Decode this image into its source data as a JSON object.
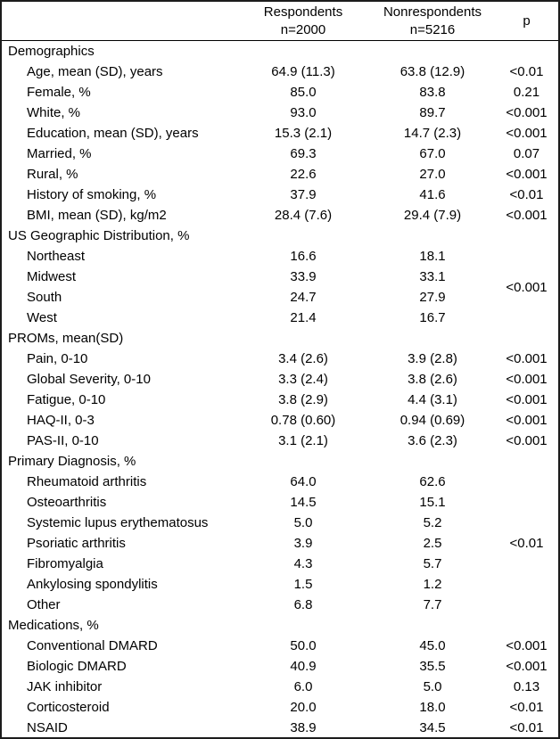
{
  "table": {
    "columns": {
      "respondents": {
        "line1": "Respondents",
        "line2": "n=2000"
      },
      "nonrespondents": {
        "line1": "Nonrespondents",
        "line2": "n=5216"
      },
      "p_label": "p"
    },
    "sections": [
      {
        "header": "Demographics",
        "rows": [
          {
            "label": "Age, mean (SD), years",
            "respondents": "64.9 (11.3)",
            "nonrespondents": "63.8 (12.9)",
            "p": "<0.01"
          },
          {
            "label": "Female, %",
            "respondents": "85.0",
            "nonrespondents": "83.8",
            "p": "0.21"
          },
          {
            "label": "White, %",
            "respondents": "93.0",
            "nonrespondents": "89.7",
            "p": "<0.001"
          },
          {
            "label": "Education, mean (SD), years",
            "respondents": "15.3 (2.1)",
            "nonrespondents": "14.7 (2.3)",
            "p": "<0.001"
          },
          {
            "label": "Married, %",
            "respondents": "69.3",
            "nonrespondents": "67.0",
            "p": "0.07"
          },
          {
            "label": "Rural, %",
            "respondents": "22.6",
            "nonrespondents": "27.0",
            "p": "<0.001"
          },
          {
            "label": "History of smoking, %",
            "respondents": "37.9",
            "nonrespondents": "41.6",
            "p": "<0.01"
          },
          {
            "label": "BMI, mean (SD), kg/m2",
            "respondents": "28.4 (7.6)",
            "nonrespondents": "29.4 (7.9)",
            "p": "<0.001"
          }
        ]
      },
      {
        "header": "US Geographic Distribution, %",
        "merged_p": "<0.001",
        "rows": [
          {
            "label": "Northeast",
            "respondents": "16.6",
            "nonrespondents": "18.1"
          },
          {
            "label": "Midwest",
            "respondents": "33.9",
            "nonrespondents": "33.1"
          },
          {
            "label": "South",
            "respondents": "24.7",
            "nonrespondents": "27.9"
          },
          {
            "label": "West",
            "respondents": "21.4",
            "nonrespondents": "16.7"
          }
        ]
      },
      {
        "header": "PROMs, mean(SD)",
        "rows": [
          {
            "label": "Pain, 0-10",
            "respondents": "3.4 (2.6)",
            "nonrespondents": "3.9 (2.8)",
            "p": "<0.001"
          },
          {
            "label": "Global Severity, 0-10",
            "respondents": "3.3 (2.4)",
            "nonrespondents": "3.8 (2.6)",
            "p": "<0.001"
          },
          {
            "label": "Fatigue, 0-10",
            "respondents": "3.8 (2.9)",
            "nonrespondents": "4.4 (3.1)",
            "p": "<0.001"
          },
          {
            "label": "HAQ-II, 0-3",
            "respondents": "0.78 (0.60)",
            "nonrespondents": "0.94 (0.69)",
            "p": "<0.001"
          },
          {
            "label": "PAS-II, 0-10",
            "respondents": "3.1 (2.1)",
            "nonrespondents": "3.6 (2.3)",
            "p": "<0.001"
          }
        ]
      },
      {
        "header": "Primary Diagnosis, %",
        "merged_p": "<0.01",
        "rows": [
          {
            "label": "Rheumatoid arthritis",
            "respondents": "64.0",
            "nonrespondents": "62.6"
          },
          {
            "label": "Osteoarthritis",
            "respondents": "14.5",
            "nonrespondents": "15.1"
          },
          {
            "label": "Systemic lupus erythematosus",
            "respondents": "5.0",
            "nonrespondents": "5.2"
          },
          {
            "label": "Psoriatic arthritis",
            "respondents": "3.9",
            "nonrespondents": "2.5"
          },
          {
            "label": "Fibromyalgia",
            "respondents": "4.3",
            "nonrespondents": "5.7"
          },
          {
            "label": "Ankylosing spondylitis",
            "respondents": "1.5",
            "nonrespondents": "1.2"
          },
          {
            "label": "Other",
            "respondents": "6.8",
            "nonrespondents": "7.7"
          }
        ]
      },
      {
        "header": "Medications, %",
        "rows": [
          {
            "label": "Conventional DMARD",
            "respondents": "50.0",
            "nonrespondents": "45.0",
            "p": "<0.001"
          },
          {
            "label": "Biologic DMARD",
            "respondents": "40.9",
            "nonrespondents": "35.5",
            "p": "<0.001"
          },
          {
            "label": "JAK inhibitor",
            "respondents": "6.0",
            "nonrespondents": "5.0",
            "p": "0.13"
          },
          {
            "label": "Corticosteroid",
            "respondents": "20.0",
            "nonrespondents": "18.0",
            "p": "<0.01"
          },
          {
            "label": "NSAID",
            "respondents": "38.9",
            "nonrespondents": "34.5",
            "p": "<0.01"
          }
        ]
      }
    ]
  }
}
